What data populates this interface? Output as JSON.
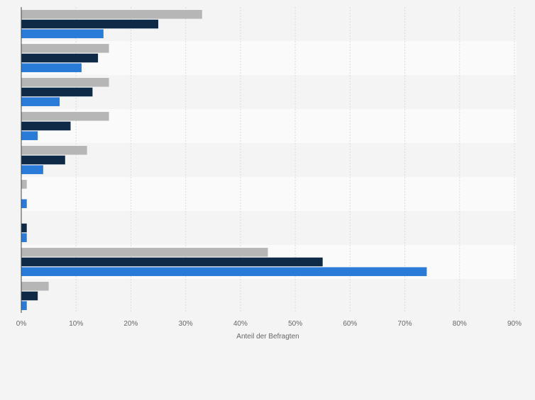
{
  "chart_data": {
    "type": "bar",
    "orientation": "horizontal",
    "title": "",
    "xlabel": "Anteil der Befragten",
    "ylabel": "",
    "xlim": [
      0,
      90
    ],
    "grid": true,
    "tick_values": [
      0,
      10,
      20,
      30,
      40,
      50,
      60,
      70,
      80,
      90
    ],
    "tick_labels": [
      "0%",
      "10%",
      "20%",
      "30%",
      "40%",
      "50%",
      "60%",
      "70%",
      "80%",
      "90%"
    ],
    "categories": [
      "",
      "",
      "",
      "",
      "",
      "",
      "",
      "",
      ""
    ],
    "series": [
      {
        "name": "",
        "color": "#b6b6b6",
        "values": [
          33,
          16,
          16,
          16,
          12,
          1,
          0,
          45,
          5
        ]
      },
      {
        "name": "",
        "color": "#0e2a47",
        "values": [
          25,
          14,
          13,
          9,
          8,
          0,
          1,
          55,
          3
        ]
      },
      {
        "name": "",
        "color": "#2a7ad8",
        "values": [
          15,
          11,
          7,
          3,
          4,
          1,
          1,
          74,
          1
        ]
      }
    ]
  }
}
